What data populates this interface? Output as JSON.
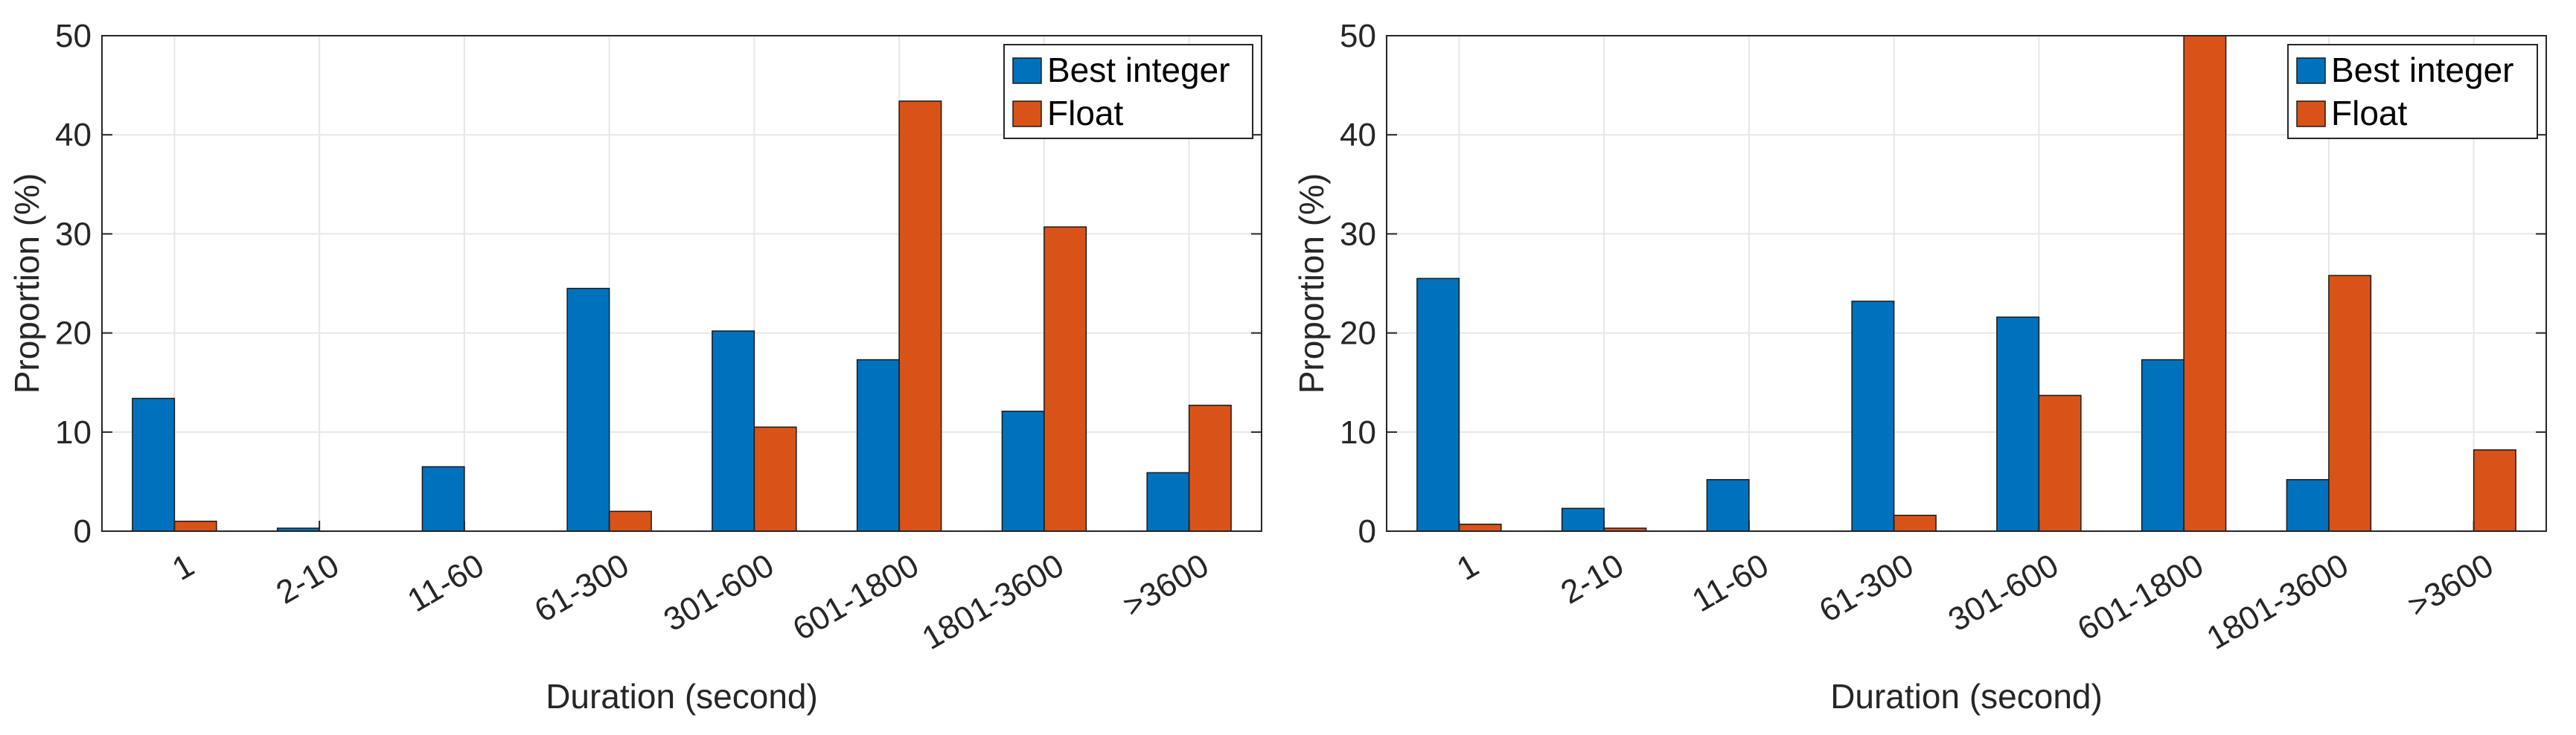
{
  "chart_data": [
    {
      "type": "bar",
      "categories": [
        "1",
        "2-10",
        "11-60",
        "61-300",
        "301-600",
        "601-1800",
        "1801-3600",
        ">3600"
      ],
      "series": [
        {
          "name": "Best integer",
          "color": "#0072BD",
          "values": [
            13.4,
            0.3,
            6.5,
            24.5,
            20.2,
            17.3,
            12.1,
            5.9
          ]
        },
        {
          "name": "Float",
          "color": "#D95319",
          "values": [
            1.0,
            0,
            0,
            2.0,
            10.5,
            43.4,
            30.7,
            12.7
          ]
        }
      ],
      "xlabel": "Duration (second)",
      "ylabel": "Proportion (%)",
      "ylim": [
        0,
        50
      ],
      "yticks": [
        "0",
        "10",
        "20",
        "30",
        "40",
        "50"
      ],
      "grid": true,
      "legend": "top-right"
    },
    {
      "type": "bar",
      "categories": [
        "1",
        "2-10",
        "11-60",
        "61-300",
        "301-600",
        "601-1800",
        "1801-3600",
        ">3600"
      ],
      "series": [
        {
          "name": "Best integer",
          "color": "#0072BD",
          "values": [
            25.5,
            2.3,
            5.2,
            23.2,
            21.6,
            17.3,
            5.2,
            0
          ]
        },
        {
          "name": "Float",
          "color": "#D95319",
          "values": [
            0.7,
            0.3,
            0,
            1.6,
            13.7,
            50.0,
            25.8,
            8.2
          ]
        }
      ],
      "xlabel": "Duration (second)",
      "ylabel": "Proportion (%)",
      "ylim": [
        0,
        50
      ],
      "yticks": [
        "0",
        "10",
        "20",
        "30",
        "40",
        "50"
      ],
      "grid": true,
      "legend": "top-right"
    }
  ]
}
